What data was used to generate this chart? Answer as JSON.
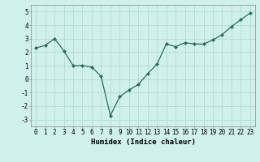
{
  "x": [
    0,
    1,
    2,
    3,
    4,
    5,
    6,
    7,
    8,
    9,
    10,
    11,
    12,
    13,
    14,
    15,
    16,
    17,
    18,
    19,
    20,
    21,
    22,
    23
  ],
  "y": [
    2.3,
    2.5,
    3.0,
    2.1,
    1.0,
    1.0,
    0.9,
    0.2,
    -2.7,
    -1.3,
    -0.8,
    -0.4,
    0.4,
    1.1,
    2.6,
    2.4,
    2.7,
    2.6,
    2.6,
    2.9,
    3.3,
    3.9,
    4.4,
    4.9
  ],
  "xlabel": "Humidex (Indice chaleur)",
  "line_color": "#2d6b5e",
  "marker": "D",
  "marker_size": 2.0,
  "linewidth": 0.9,
  "bg_color": "#cff0eb",
  "grid_color": "#aad8d0",
  "xlim": [
    -0.5,
    23.5
  ],
  "ylim": [
    -3.5,
    5.5
  ],
  "yticks": [
    -3,
    -2,
    -1,
    0,
    1,
    2,
    3,
    4,
    5
  ],
  "xticks": [
    0,
    1,
    2,
    3,
    4,
    5,
    6,
    7,
    8,
    9,
    10,
    11,
    12,
    13,
    14,
    15,
    16,
    17,
    18,
    19,
    20,
    21,
    22,
    23
  ],
  "xlabel_fontsize": 6.5,
  "tick_fontsize": 5.5,
  "font_family": "monospace"
}
